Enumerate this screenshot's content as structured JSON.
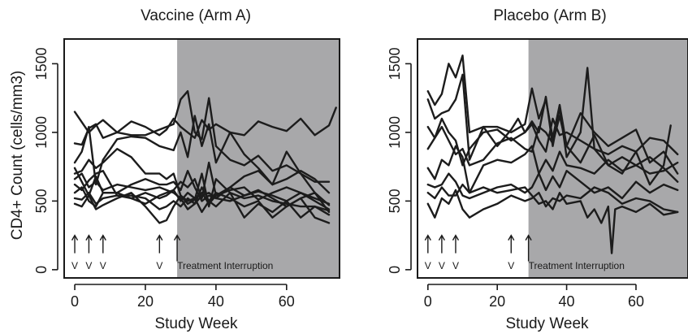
{
  "figure": {
    "ylabel": "CD4+ Count (cells/mm3)",
    "annotation_text": "Treatment Interruption",
    "vaccination_marker": "V"
  },
  "chart_data": [
    {
      "type": "line",
      "title": "Vaccine (Arm A)",
      "xlabel": "Study Week",
      "ylabel": "CD4+ Count (cells/mm3)",
      "xlim": [
        -3,
        75
      ],
      "ylim": [
        -60,
        1680
      ],
      "x_ticks": [
        0,
        20,
        40,
        60
      ],
      "y_ticks": [
        0,
        500,
        1000,
        1500
      ],
      "grid": false,
      "shaded_region": {
        "x_start": 29,
        "x_end": 75,
        "color": "#a8a8aa",
        "label": "Treatment Interruption"
      },
      "vaccination_weeks": [
        0,
        4,
        8,
        24
      ],
      "interruption_arrow_week": 29,
      "line_color": "#1c1c1c",
      "series": [
        {
          "x": [
            0,
            4,
            6,
            8,
            12,
            16,
            20,
            24,
            26,
            28,
            30,
            32,
            34,
            36,
            38,
            40,
            44,
            48,
            52,
            56,
            60,
            64,
            68,
            72,
            74
          ],
          "y": [
            1150,
            1000,
            1050,
            1090,
            1000,
            1080,
            1040,
            980,
            1020,
            1100,
            1040,
            1000,
            960,
            1090,
            1020,
            1060,
            1000,
            980,
            1080,
            1040,
            1010,
            1100,
            980,
            1050,
            1180
          ]
        },
        {
          "x": [
            0,
            2,
            4,
            6,
            8,
            12,
            16,
            20,
            24,
            26,
            28,
            30,
            32,
            34,
            36,
            38,
            40,
            44,
            48,
            52,
            56,
            60,
            64,
            68,
            72
          ],
          "y": [
            920,
            910,
            1030,
            1060,
            960,
            1000,
            980,
            980,
            1020,
            1040,
            1060,
            1240,
            1300,
            1000,
            950,
            1250,
            900,
            800,
            760,
            830,
            720,
            760,
            700,
            640,
            640
          ]
        },
        {
          "x": [
            0,
            2,
            4,
            6,
            8,
            12,
            16,
            20,
            24,
            28,
            30,
            32,
            34,
            36,
            38,
            40,
            44,
            48,
            52,
            56,
            60,
            64,
            68,
            72
          ],
          "y": [
            780,
            860,
            1040,
            620,
            800,
            950,
            970,
            960,
            900,
            870,
            1000,
            820,
            1120,
            900,
            1060,
            780,
            1000,
            840,
            740,
            620,
            860,
            700,
            560,
            470
          ]
        },
        {
          "x": [
            0,
            2,
            4,
            6,
            8,
            12,
            16,
            20,
            24,
            26,
            28,
            30,
            32,
            34,
            36,
            38,
            40,
            44,
            48,
            52,
            56,
            60,
            64,
            68,
            72
          ],
          "y": [
            700,
            720,
            800,
            740,
            780,
            880,
            820,
            700,
            700,
            660,
            700,
            540,
            480,
            510,
            700,
            460,
            660,
            560,
            520,
            540,
            500,
            480,
            460,
            460,
            400
          ]
        },
        {
          "x": [
            0,
            2,
            4,
            6,
            8,
            12,
            16,
            20,
            24,
            26,
            28,
            30,
            32,
            34,
            36,
            38,
            40,
            44,
            48,
            52,
            56,
            60,
            64,
            68,
            72
          ],
          "y": [
            620,
            580,
            650,
            700,
            720,
            540,
            520,
            560,
            520,
            540,
            580,
            640,
            600,
            660,
            520,
            780,
            540,
            580,
            600,
            510,
            560,
            600,
            560,
            500,
            440
          ]
        },
        {
          "x": [
            0,
            2,
            4,
            6,
            8,
            12,
            16,
            20,
            24,
            26,
            28,
            30,
            32,
            34,
            36,
            38,
            40,
            44,
            48,
            52,
            56,
            60,
            64,
            68,
            72
          ],
          "y": [
            560,
            600,
            500,
            460,
            560,
            560,
            520,
            480,
            540,
            560,
            580,
            500,
            560,
            520,
            560,
            480,
            540,
            600,
            540,
            570,
            540,
            500,
            560,
            520,
            480
          ]
        },
        {
          "x": [
            0,
            2,
            4,
            6,
            8,
            12,
            16,
            20,
            24,
            26,
            28,
            30,
            32,
            34,
            36,
            38,
            40,
            44,
            48,
            52,
            56,
            60,
            64,
            68,
            72
          ],
          "y": [
            520,
            510,
            560,
            480,
            520,
            540,
            540,
            520,
            440,
            460,
            500,
            460,
            520,
            480,
            540,
            560,
            520,
            500,
            540,
            580,
            520,
            460,
            520,
            560,
            420
          ]
        },
        {
          "x": [
            0,
            2,
            4,
            6,
            8,
            12,
            16,
            20,
            24,
            26,
            28,
            30,
            32,
            34,
            36,
            38,
            40,
            44,
            48,
            52,
            56,
            60,
            64,
            68,
            72
          ],
          "y": [
            480,
            460,
            540,
            440,
            470,
            520,
            560,
            460,
            340,
            360,
            460,
            540,
            500,
            520,
            420,
            500,
            460,
            560,
            380,
            480,
            420,
            500,
            380,
            460,
            430
          ]
        },
        {
          "x": [
            0,
            2,
            4,
            6,
            8,
            12,
            16,
            20,
            24,
            26,
            28,
            30,
            32,
            34,
            36,
            38,
            40,
            44,
            48,
            52,
            56,
            60,
            64,
            68,
            72
          ],
          "y": [
            740,
            640,
            540,
            680,
            560,
            560,
            620,
            660,
            620,
            620,
            640,
            580,
            720,
            600,
            500,
            540,
            520,
            600,
            680,
            720,
            620,
            660,
            720,
            660,
            560
          ]
        },
        {
          "x": [
            0,
            2,
            4,
            6,
            8,
            12,
            16,
            20,
            24,
            26,
            28,
            30,
            32,
            34,
            36,
            38,
            40,
            44,
            48,
            52,
            56,
            60,
            64,
            68,
            72
          ],
          "y": [
            660,
            700,
            600,
            640,
            580,
            620,
            600,
            580,
            600,
            580,
            560,
            520,
            440,
            480,
            600,
            500,
            560,
            520,
            460,
            500,
            380,
            460,
            520,
            380,
            340
          ]
        }
      ]
    },
    {
      "type": "line",
      "title": "Placebo (Arm B)",
      "xlabel": "Study Week",
      "ylabel": "",
      "xlim": [
        -3,
        75
      ],
      "ylim": [
        -60,
        1680
      ],
      "x_ticks": [
        0,
        20,
        40,
        60
      ],
      "y_ticks": [
        0,
        500,
        1000,
        1500
      ],
      "grid": false,
      "shaded_region": {
        "x_start": 29,
        "x_end": 75,
        "color": "#a8a8aa",
        "label": "Treatment Interruption"
      },
      "vaccination_weeks": [
        0,
        4,
        8,
        24
      ],
      "interruption_arrow_week": 29,
      "line_color": "#1c1c1c",
      "series": [
        {
          "x": [
            0,
            2,
            4,
            6,
            8,
            10,
            12,
            16,
            20,
            24,
            28,
            30,
            32,
            34,
            36,
            38,
            40,
            44,
            48,
            52,
            56,
            60,
            64,
            68,
            72
          ],
          "y": [
            1300,
            1200,
            1280,
            1500,
            1400,
            1560,
            1000,
            1040,
            1040,
            1000,
            1060,
            1320,
            1100,
            1240,
            960,
            1200,
            900,
            1140,
            1000,
            900,
            960,
            1020,
            780,
            860,
            700
          ]
        },
        {
          "x": [
            0,
            2,
            4,
            6,
            8,
            10,
            12,
            16,
            20,
            24,
            26,
            28,
            30,
            32,
            34,
            36,
            38,
            40,
            44,
            46,
            48,
            52,
            56,
            60,
            64,
            68,
            70
          ],
          "y": [
            1240,
            1100,
            1140,
            1160,
            1240,
            1420,
            800,
            1040,
            900,
            1020,
            1100,
            1000,
            1080,
            1000,
            1260,
            900,
            1180,
            820,
            1000,
            1470,
            880,
            760,
            700,
            860,
            620,
            760,
            1050
          ]
        },
        {
          "x": [
            0,
            2,
            4,
            6,
            8,
            10,
            12,
            16,
            20,
            24,
            28,
            30,
            32,
            34,
            36,
            38,
            40,
            44,
            48,
            52,
            56,
            60,
            64,
            68,
            72
          ],
          "y": [
            1040,
            960,
            1100,
            1000,
            940,
            760,
            880,
            1000,
            1020,
            940,
            1000,
            1060,
            940,
            860,
            1100,
            980,
            1000,
            940,
            880,
            840,
            900,
            860,
            960,
            940,
            840
          ]
        },
        {
          "x": [
            0,
            2,
            4,
            6,
            8,
            10,
            12,
            16,
            20,
            24,
            28,
            30,
            32,
            34,
            36,
            38,
            40,
            44,
            48,
            52,
            56,
            60,
            64,
            68,
            72
          ],
          "y": [
            880,
            960,
            1040,
            940,
            840,
            880,
            760,
            800,
            920,
            960,
            880,
            860,
            1040,
            1000,
            920,
            1120,
            900,
            780,
            980,
            760,
            820,
            760,
            700,
            720,
            780
          ]
        },
        {
          "x": [
            0,
            2,
            4,
            6,
            8,
            10,
            12,
            16,
            20,
            24,
            28,
            30,
            32,
            34,
            36,
            38,
            40,
            44,
            48,
            52,
            56,
            60,
            64,
            68,
            72
          ],
          "y": [
            740,
            660,
            800,
            760,
            900,
            820,
            560,
            760,
            800,
            780,
            840,
            900,
            700,
            800,
            720,
            860,
            760,
            740,
            700,
            800,
            720,
            760,
            820,
            740,
            640
          ]
        },
        {
          "x": [
            0,
            2,
            4,
            6,
            8,
            10,
            12,
            16,
            20,
            24,
            28,
            30,
            32,
            34,
            36,
            38,
            40,
            44,
            48,
            52,
            56,
            60,
            64,
            68,
            72
          ],
          "y": [
            620,
            600,
            620,
            700,
            640,
            540,
            520,
            560,
            600,
            620,
            560,
            600,
            700,
            580,
            680,
            600,
            720,
            640,
            560,
            600,
            520,
            640,
            560,
            620,
            580
          ]
        },
        {
          "x": [
            0,
            2,
            4,
            6,
            8,
            10,
            12,
            16,
            20,
            24,
            28,
            30,
            32,
            34,
            36,
            38,
            40,
            44,
            48,
            52,
            56,
            60,
            64,
            68,
            72
          ],
          "y": [
            480,
            380,
            520,
            480,
            580,
            440,
            380,
            440,
            480,
            540,
            500,
            520,
            560,
            460,
            520,
            500,
            540,
            520,
            600,
            560,
            480,
            520,
            500,
            440,
            420
          ]
        },
        {
          "x": [
            0,
            2,
            4,
            6,
            8,
            10,
            12,
            16,
            20,
            24,
            28,
            30,
            32,
            34,
            36,
            38,
            40,
            44,
            46,
            48,
            50,
            52,
            53,
            54,
            56,
            60,
            64,
            68,
            72
          ],
          "y": [
            560,
            520,
            600,
            540,
            540,
            620,
            560,
            600,
            560,
            580,
            600,
            540,
            480,
            500,
            440,
            560,
            480,
            500,
            380,
            440,
            340,
            460,
            120,
            440,
            460,
            420,
            480,
            400,
            420
          ]
        }
      ]
    }
  ]
}
